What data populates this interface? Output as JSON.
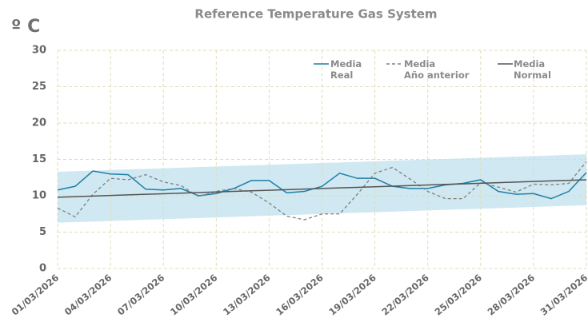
{
  "chart_data": {
    "type": "line",
    "title": "Reference Temperature Gas System",
    "y_label": "º C",
    "categories": [
      "01/03/2026",
      null,
      null,
      "04/03/2026",
      null,
      null,
      "07/03/2026",
      null,
      null,
      "10/03/2026",
      null,
      null,
      "13/03/2026",
      null,
      null,
      "16/03/2026",
      null,
      null,
      "19/03/2026",
      null,
      null,
      "22/03/2026",
      null,
      null,
      "25/03/2026",
      null,
      null,
      "28/03/2026",
      null,
      null,
      "31/03/2026"
    ],
    "series": [
      {
        "name": "Media\nReal",
        "color": "#1f7fa6",
        "dash": false,
        "values": [
          10.8,
          11.3,
          13.4,
          13.0,
          12.9,
          10.9,
          10.8,
          11.0,
          10.0,
          10.3,
          11.0,
          12.1,
          12.1,
          10.4,
          10.6,
          11.3,
          13.1,
          12.4,
          12.4,
          11.3,
          11.0,
          11.0,
          11.5,
          11.7,
          12.2,
          10.6,
          10.2,
          10.3,
          9.6,
          10.6,
          13.2
        ]
      },
      {
        "name": "Media\nAño anterior",
        "color": "#808080",
        "dash": true,
        "values": [
          8.3,
          7.1,
          10.2,
          12.4,
          12.2,
          12.9,
          11.9,
          11.4,
          9.9,
          10.6,
          11.0,
          10.5,
          9.0,
          7.2,
          6.7,
          7.5,
          7.5,
          10.2,
          13.1,
          13.9,
          12.3,
          10.6,
          9.6,
          9.6,
          11.8,
          11.2,
          10.5,
          11.6,
          11.5,
          11.7,
          14.7
        ]
      },
      {
        "name": "Media\nNormal",
        "color": "#555555",
        "dash": false,
        "values": [
          9.8,
          9.88,
          9.96,
          10.04,
          10.12,
          10.2,
          10.28,
          10.36,
          10.44,
          10.52,
          10.6,
          10.68,
          10.76,
          10.84,
          10.92,
          11.0,
          11.08,
          11.16,
          11.24,
          11.32,
          11.4,
          11.48,
          11.56,
          11.64,
          11.72,
          11.8,
          11.88,
          11.96,
          12.04,
          12.12,
          12.2
        ]
      }
    ],
    "band": {
      "color": "#cfe8f1",
      "lower": [
        6.3,
        6.38,
        6.46,
        6.54,
        6.62,
        6.7,
        6.78,
        6.86,
        6.94,
        7.02,
        7.1,
        7.18,
        7.26,
        7.34,
        7.42,
        7.5,
        7.58,
        7.66,
        7.74,
        7.82,
        7.9,
        7.98,
        8.06,
        8.14,
        8.22,
        8.3,
        8.38,
        8.46,
        8.54,
        8.62,
        8.7
      ],
      "upper": [
        13.3,
        13.38,
        13.46,
        13.54,
        13.62,
        13.7,
        13.78,
        13.86,
        13.94,
        14.02,
        14.1,
        14.18,
        14.26,
        14.34,
        14.42,
        14.5,
        14.58,
        14.66,
        14.74,
        14.82,
        14.9,
        14.98,
        15.06,
        15.14,
        15.22,
        15.3,
        15.38,
        15.46,
        15.54,
        15.62,
        15.7
      ]
    },
    "ylim": [
      0,
      30
    ],
    "yticks": [
      0,
      5,
      10,
      15,
      20,
      25,
      30
    ],
    "grid": true,
    "legend": "top"
  }
}
